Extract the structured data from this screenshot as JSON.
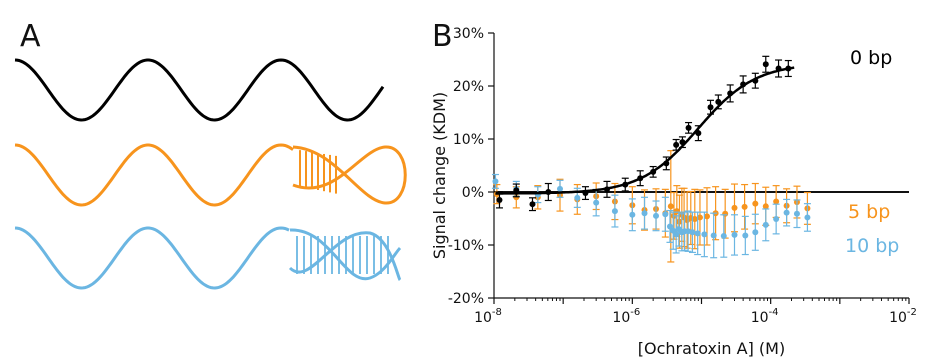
{
  "panels": {
    "a_label": "A",
    "b_label": "B"
  },
  "panel_a": {
    "strands": [
      {
        "type": "plain",
        "color": "#000000"
      },
      {
        "type": "hairpin-end",
        "color": "#f7941d"
      },
      {
        "type": "helix-end",
        "color": "#6bb6e2"
      }
    ]
  },
  "chart_data": {
    "type": "scatter",
    "title": "",
    "xlabel": "[Ochratoxin A] (M)",
    "ylabel": "Signal change (KDM)",
    "x_scale": "log",
    "xlim": [
      1e-08,
      0.01
    ],
    "ylim": [
      -20,
      30
    ],
    "y_unit": "%",
    "x_ticks": [
      {
        "base": "10",
        "exp": "-8"
      },
      {
        "base": "10",
        "exp": "-6"
      },
      {
        "base": "10",
        "exp": "-4"
      },
      {
        "base": "10",
        "exp": "-2"
      }
    ],
    "y_ticks": [
      "-20%",
      "-10%",
      "0%",
      "10%",
      "20%",
      "30%"
    ],
    "y_tick_values": [
      -20,
      -10,
      0,
      10,
      20,
      30
    ],
    "zero_line": true,
    "series": [
      {
        "name": "0 bp",
        "color": "#000000",
        "fit": {
          "bottom": -0.3,
          "top": 24.3,
          "ec50": 9e-06,
          "hill": 1.05
        },
        "points": [
          {
            "x": 1.2e-08,
            "y": -1.5,
            "err": 1.5
          },
          {
            "x": 2.1e-08,
            "y": 0.3,
            "err": 1.2
          },
          {
            "x": 3.6e-08,
            "y": -2.3,
            "err": 1.2
          },
          {
            "x": 6.1e-08,
            "y": 0.0,
            "err": 1.6
          },
          {
            "x": 2.1e-07,
            "y": -0.2,
            "err": 1.2
          },
          {
            "x": 4.3e-07,
            "y": 0.5,
            "err": 1.5
          },
          {
            "x": 7.9e-07,
            "y": 1.4,
            "err": 1.2
          },
          {
            "x": 1.3e-06,
            "y": 2.6,
            "err": 1.4
          },
          {
            "x": 2e-06,
            "y": 3.8,
            "err": 1.0
          },
          {
            "x": 3.1e-06,
            "y": 5.4,
            "err": 1.2
          },
          {
            "x": 4.3e-06,
            "y": 8.9,
            "err": 1.0
          },
          {
            "x": 5.3e-06,
            "y": 9.4,
            "err": 1.0
          },
          {
            "x": 6.5e-06,
            "y": 12.1,
            "err": 1.0
          },
          {
            "x": 9e-06,
            "y": 11.1,
            "err": 1.4
          },
          {
            "x": 1.35e-05,
            "y": 16.0,
            "err": 1.3
          },
          {
            "x": 1.75e-05,
            "y": 17.0,
            "err": 1.3
          },
          {
            "x": 2.6e-05,
            "y": 18.6,
            "err": 1.6
          },
          {
            "x": 4e-05,
            "y": 20.3,
            "err": 1.6
          },
          {
            "x": 6e-05,
            "y": 21.0,
            "err": 1.4
          },
          {
            "x": 8.5e-05,
            "y": 24.1,
            "err": 1.5
          },
          {
            "x": 0.00013,
            "y": 23.3,
            "err": 1.6
          },
          {
            "x": 0.00018,
            "y": 23.3,
            "err": 1.5
          }
        ]
      },
      {
        "name": "5 bp",
        "color": "#f7941d",
        "points": [
          {
            "x": 1.1e-08,
            "y": -0.4,
            "err": 1.8
          },
          {
            "x": 2.1e-08,
            "y": -1.0,
            "err": 2.0
          },
          {
            "x": 4.3e-08,
            "y": -1.0,
            "err": 2.2
          },
          {
            "x": 9e-08,
            "y": -0.6,
            "err": 3.0
          },
          {
            "x": 1.6e-07,
            "y": -1.4,
            "err": 2.8
          },
          {
            "x": 3e-07,
            "y": -0.8,
            "err": 2.5
          },
          {
            "x": 5.6e-07,
            "y": -1.8,
            "err": 3.4
          },
          {
            "x": 1e-06,
            "y": -2.5,
            "err": 3.5
          },
          {
            "x": 1.5e-06,
            "y": -3.4,
            "err": 3.8
          },
          {
            "x": 2.2e-06,
            "y": -3.2,
            "err": 3.8
          },
          {
            "x": 3e-06,
            "y": -4.0,
            "err": 4.5
          },
          {
            "x": 3.6e-06,
            "y": -2.7,
            "err": 10.5
          },
          {
            "x": 4e-06,
            "y": -4.5,
            "err": 4.4
          },
          {
            "x": 4.4e-06,
            "y": -3.6,
            "err": 4.8
          },
          {
            "x": 4.8e-06,
            "y": -5.6,
            "err": 5.0
          },
          {
            "x": 5.2e-06,
            "y": -4.3,
            "err": 5.0
          },
          {
            "x": 5.6e-06,
            "y": -4.8,
            "err": 5.5
          },
          {
            "x": 6.2e-06,
            "y": -5.3,
            "err": 5.3
          },
          {
            "x": 7e-06,
            "y": -4.9,
            "err": 5.0
          },
          {
            "x": 8e-06,
            "y": -5.1,
            "err": 5.6
          },
          {
            "x": 9.5e-06,
            "y": -4.8,
            "err": 5.2
          },
          {
            "x": 1.2e-05,
            "y": -4.6,
            "err": 5.4
          },
          {
            "x": 1.6e-05,
            "y": -4.0,
            "err": 5.0
          },
          {
            "x": 2.2e-05,
            "y": -4.1,
            "err": 4.6
          },
          {
            "x": 3e-05,
            "y": -3.0,
            "err": 4.5
          },
          {
            "x": 4.2e-05,
            "y": -2.8,
            "err": 4.2
          },
          {
            "x": 6e-05,
            "y": -2.2,
            "err": 3.8
          },
          {
            "x": 8.5e-05,
            "y": -2.7,
            "err": 3.6
          },
          {
            "x": 0.00012,
            "y": -1.8,
            "err": 3.0
          },
          {
            "x": 0.00017,
            "y": -2.6,
            "err": 3.2
          },
          {
            "x": 0.00024,
            "y": -1.9,
            "err": 3.0
          },
          {
            "x": 0.00034,
            "y": -3.1,
            "err": 3.0
          }
        ]
      },
      {
        "name": "10 bp",
        "color": "#6bb6e2",
        "points": [
          {
            "x": 1.05e-08,
            "y": 2.0,
            "err": 1.3
          },
          {
            "x": 2.1e-08,
            "y": 0.6,
            "err": 1.4
          },
          {
            "x": 4.3e-08,
            "y": -0.5,
            "err": 1.5
          },
          {
            "x": 9e-08,
            "y": 0.6,
            "err": 1.6
          },
          {
            "x": 1.6e-07,
            "y": -1.1,
            "err": 1.8
          },
          {
            "x": 3e-07,
            "y": -2.0,
            "err": 2.5
          },
          {
            "x": 5.6e-07,
            "y": -3.6,
            "err": 3.0
          },
          {
            "x": 1e-06,
            "y": -4.3,
            "err": 3.0
          },
          {
            "x": 1.5e-06,
            "y": -4.0,
            "err": 3.0
          },
          {
            "x": 2.2e-06,
            "y": -4.5,
            "err": 2.8
          },
          {
            "x": 3e-06,
            "y": -4.2,
            "err": 3.2
          },
          {
            "x": 3.5e-06,
            "y": -6.5,
            "err": 3.0
          },
          {
            "x": 3.9e-06,
            "y": -7.3,
            "err": 3.5
          },
          {
            "x": 4.3e-06,
            "y": -8.0,
            "err": 3.5
          },
          {
            "x": 4.7e-06,
            "y": -7.0,
            "err": 3.2
          },
          {
            "x": 5.2e-06,
            "y": -7.6,
            "err": 3.5
          },
          {
            "x": 5.7e-06,
            "y": -7.4,
            "err": 3.6
          },
          {
            "x": 6.4e-06,
            "y": -7.4,
            "err": 3.8
          },
          {
            "x": 7.4e-06,
            "y": -7.6,
            "err": 3.8
          },
          {
            "x": 8.8e-06,
            "y": -7.8,
            "err": 4.0
          },
          {
            "x": 1.1e-05,
            "y": -8.0,
            "err": 4.2
          },
          {
            "x": 1.5e-05,
            "y": -8.2,
            "err": 4.2
          },
          {
            "x": 2.1e-05,
            "y": -8.3,
            "err": 4.0
          },
          {
            "x": 3e-05,
            "y": -8.1,
            "err": 3.8
          },
          {
            "x": 4.3e-05,
            "y": -8.2,
            "err": 3.6
          },
          {
            "x": 6e-05,
            "y": -7.6,
            "err": 3.4
          },
          {
            "x": 8.5e-05,
            "y": -6.2,
            "err": 3.0
          },
          {
            "x": 0.00012,
            "y": -5.1,
            "err": 2.8
          },
          {
            "x": 0.00017,
            "y": -3.9,
            "err": 2.5
          },
          {
            "x": 0.00024,
            "y": -4.1,
            "err": 2.6
          },
          {
            "x": 0.00034,
            "y": -4.8,
            "err": 2.6
          }
        ]
      }
    ]
  }
}
